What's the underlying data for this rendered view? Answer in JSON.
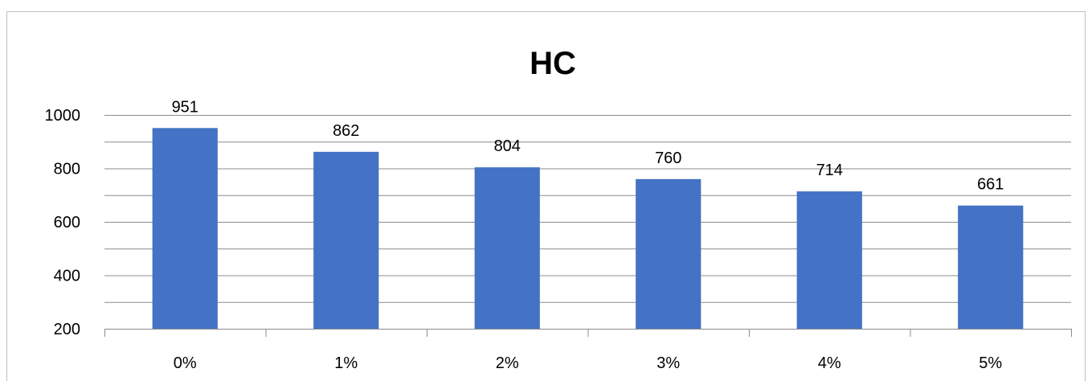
{
  "chart_data": {
    "type": "bar",
    "title": "HC",
    "xlabel": "",
    "ylabel": "",
    "categories": [
      "0%",
      "1%",
      "2%",
      "3%",
      "4%",
      "5%"
    ],
    "values": [
      951,
      862,
      804,
      760,
      714,
      661
    ],
    "ylim": [
      200,
      1000
    ],
    "yticks": [
      "200",
      "400",
      "600",
      "800",
      "1000"
    ],
    "grid": true,
    "legend": "none",
    "bar_color": "#4472C4"
  }
}
